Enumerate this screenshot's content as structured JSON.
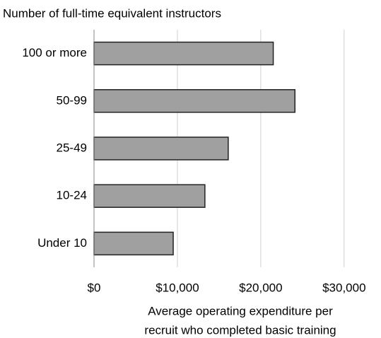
{
  "chart_data": {
    "type": "barh",
    "title": "Number of full-time equivalent instructors",
    "xlabel": [
      "Average operating expenditure per",
      "recruit who completed basic training"
    ],
    "categories": [
      "100 or more",
      "50-99",
      "25-49",
      "10-24",
      "Under 10"
    ],
    "values": [
      21500,
      24100,
      16100,
      13300,
      9500
    ],
    "color": "#a0a0a0",
    "xlim": [
      0,
      34000
    ],
    "xticks": [
      {
        "value": 0,
        "label": "$0"
      },
      {
        "value": 10000,
        "label": "$10,000"
      },
      {
        "value": 20000,
        "label": "$20,000"
      },
      {
        "value": 30000,
        "label": "$30,000"
      }
    ],
    "grid": true
  }
}
